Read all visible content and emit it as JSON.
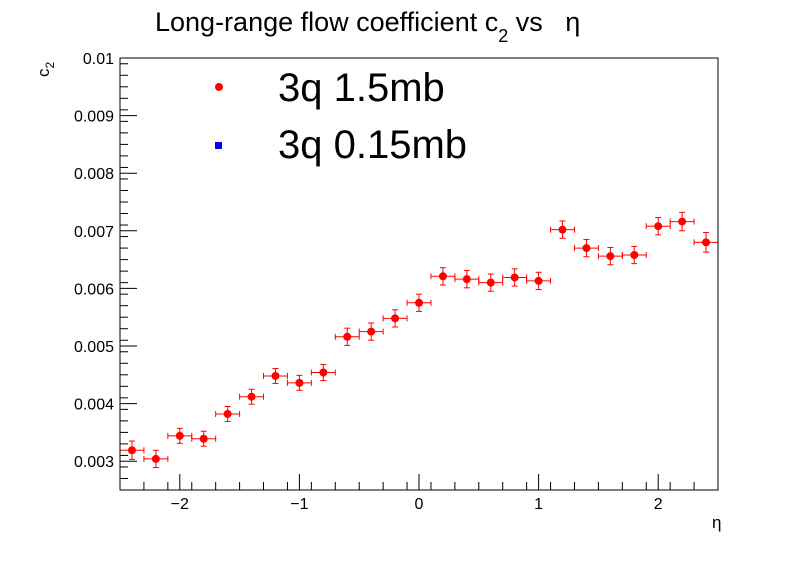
{
  "chart_data": {
    "type": "scatter",
    "title": {
      "main": "Long-range flow coefficient c",
      "sub": "2",
      "suffix": " vs   η"
    },
    "xlabel": "η",
    "ylabel": {
      "main": "c",
      "sub": "2"
    },
    "xlim": [
      -2.5,
      2.5
    ],
    "ylim": [
      0.0025,
      0.01
    ],
    "xticks": [
      -2,
      -1,
      0,
      1,
      2
    ],
    "xtick_labels": [
      "−2",
      "−1",
      "0",
      "1",
      "2"
    ],
    "yticks": [
      0.003,
      0.004,
      0.005,
      0.006,
      0.007,
      0.008,
      0.009,
      0.01
    ],
    "ytick_labels": [
      "0.003",
      "0.004",
      "0.005",
      "0.006",
      "0.007",
      "0.008",
      "0.009",
      "0.01"
    ],
    "legend_position": "top-left",
    "series": [
      {
        "name": "3q 1.5mb",
        "color": "#ff0000",
        "marker": "circle",
        "x": [
          -2.4,
          -2.2,
          -2.0,
          -1.8,
          -1.6,
          -1.4,
          -1.2,
          -1.0,
          -0.8,
          -0.6,
          -0.4,
          -0.2,
          0.0,
          0.2,
          0.4,
          0.6,
          0.8,
          1.0,
          1.2,
          1.4,
          1.6,
          1.8,
          2.0,
          2.2,
          2.4
        ],
        "y": [
          0.00319,
          0.00304,
          0.00344,
          0.00339,
          0.00382,
          0.00412,
          0.00448,
          0.00436,
          0.00454,
          0.00516,
          0.00525,
          0.00548,
          0.00575,
          0.00621,
          0.00616,
          0.0061,
          0.00619,
          0.00613,
          0.00702,
          0.0067,
          0.00656,
          0.00658,
          0.00708,
          0.00716,
          0.0068
        ],
        "xerr": 0.1,
        "yerr": [
          0.00016,
          0.00015,
          0.00013,
          0.00013,
          0.00013,
          0.00013,
          0.00013,
          0.00013,
          0.00014,
          0.00015,
          0.00015,
          0.00015,
          0.00015,
          0.00015,
          0.00015,
          0.00015,
          0.00015,
          0.00015,
          0.00015,
          0.00015,
          0.00015,
          0.00015,
          0.00015,
          0.00016,
          0.00017
        ]
      },
      {
        "name": "3q 0.15mb",
        "color": "#0000ff",
        "marker": "square",
        "x": [],
        "y": []
      }
    ]
  }
}
